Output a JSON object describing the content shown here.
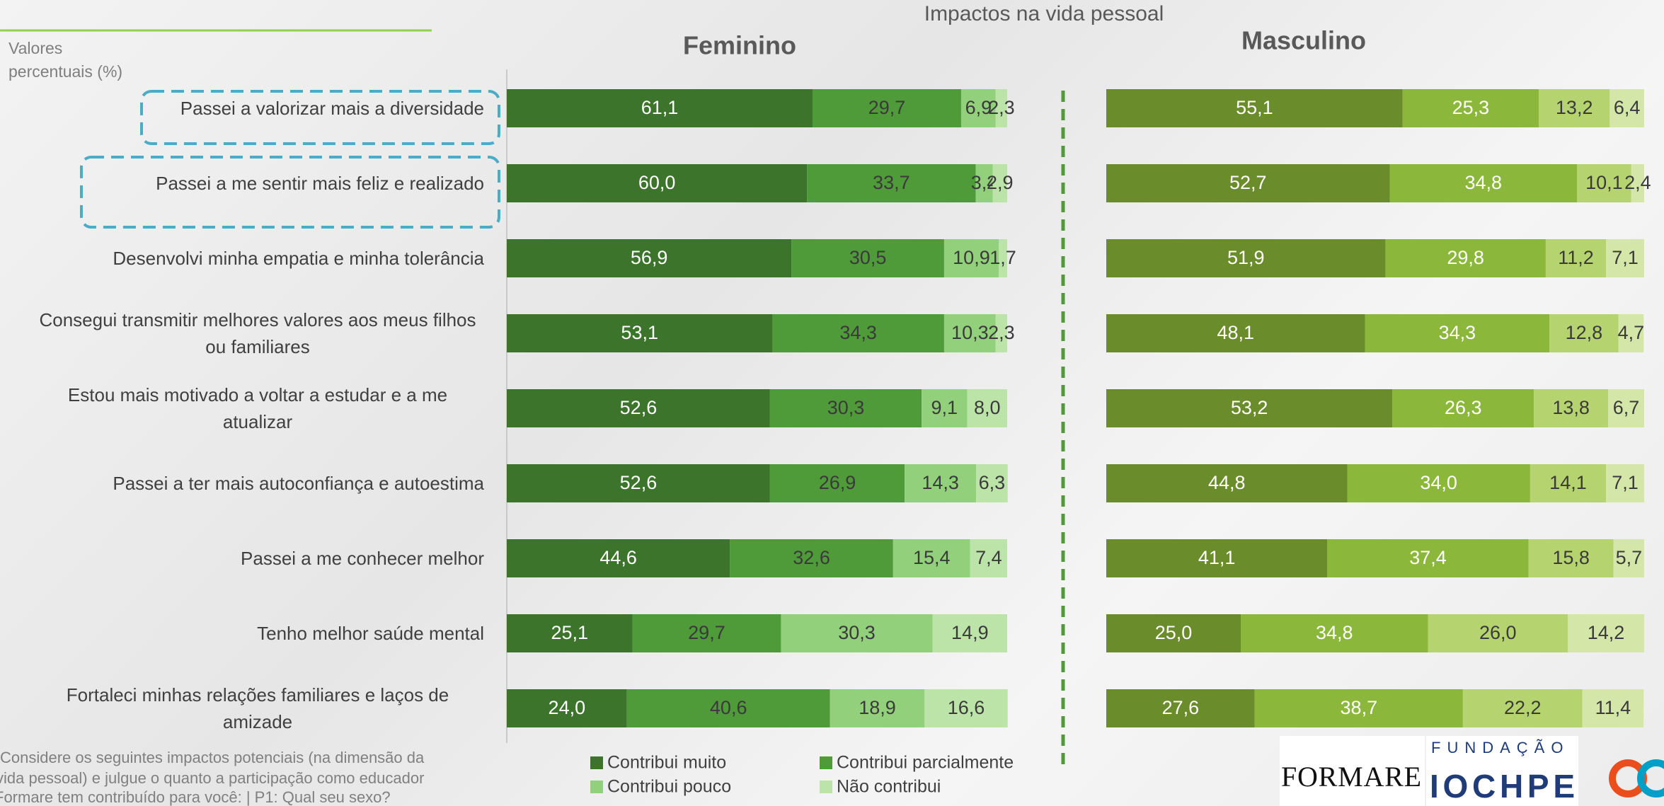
{
  "title": "Impactos na vida pessoal",
  "unit_note": [
    "Valores",
    "percentuais (%)"
  ],
  "footnote": [
    "Considere os seguintes impactos potenciais (na dimensão da",
    "vida pessoal) e julgue o quanto a participação como educador",
    "Formare tem contribuído para você: | P1: Qual seu sexo?"
  ],
  "logos": {
    "formare": "FORMARE",
    "fundacao": "FUNDAÇÃO",
    "iochpe": "IOCHPE"
  },
  "chart_data": [
    {
      "type": "bar",
      "orientation": "horizontal",
      "stacked": true,
      "title": "Feminino",
      "categories": [
        "Passei a valorizar mais a diversidade",
        "Passei a me sentir mais feliz e realizado",
        "Desenvolvi minha empatia e minha tolerância",
        "Consegui transmitir melhores valores aos meus filhos ou familiares",
        "Estou mais motivado a voltar a estudar e a me atualizar",
        "Passei a ter mais autoconfiança e autoestima",
        "Passei a me conhecer melhor",
        "Tenho melhor saúde mental",
        "Fortaleci minhas relações familiares e laços de amizade"
      ],
      "series": [
        {
          "name": "Contribui muito",
          "color": "#3d742c",
          "values": [
            61.1,
            60.0,
            56.9,
            53.1,
            52.6,
            52.6,
            44.6,
            25.1,
            24.0
          ],
          "value_labels": [
            "61,1",
            "60,0",
            "56,9",
            "53,1",
            "52,6",
            "52,6",
            "44,6",
            "25,1",
            "24,0"
          ]
        },
        {
          "name": "Contribui parcialmente",
          "color": "#4f9a39",
          "values": [
            29.7,
            33.7,
            30.5,
            34.3,
            30.3,
            26.9,
            32.6,
            29.7,
            40.6
          ],
          "value_labels": [
            "29,7",
            "33,7",
            "30,5",
            "34,3",
            "30,3",
            "26,9",
            "32,6",
            "29,7",
            "40,6"
          ]
        },
        {
          "name": "Contribui pouco",
          "color": "#92d07b",
          "values": [
            6.9,
            3.4,
            10.9,
            10.3,
            9.1,
            14.3,
            15.4,
            30.3,
            18.9
          ],
          "value_labels": [
            "6,9",
            "3,4",
            "10,9",
            "10,3",
            "9,1",
            "14,3",
            "15,4",
            "30,3",
            "18,9"
          ]
        },
        {
          "name": "Não contribui",
          "color": "#bce4a8",
          "values": [
            2.3,
            2.9,
            1.7,
            2.3,
            8.0,
            6.3,
            7.4,
            14.9,
            16.6
          ],
          "value_labels": [
            "2,3",
            "2,9",
            "1,7",
            "2,3",
            "8,0",
            "6,3",
            "7,4",
            "14,9",
            "16,6"
          ]
        }
      ],
      "legend": "bottom"
    },
    {
      "type": "bar",
      "orientation": "horizontal",
      "stacked": true,
      "title": "Masculino",
      "series": [
        {
          "color": "#6b8c2a",
          "values": [
            55.1,
            52.7,
            51.9,
            48.1,
            53.2,
            44.8,
            41.1,
            25.0,
            27.6
          ],
          "value_labels": [
            "55,1",
            "52,7",
            "51,9",
            "48,1",
            "53,2",
            "44,8",
            "41,1",
            "25,0",
            "27,6"
          ]
        },
        {
          "color": "#8bb73b",
          "values": [
            25.3,
            34.8,
            29.8,
            34.3,
            26.3,
            34.0,
            37.4,
            34.8,
            38.7
          ],
          "value_labels": [
            "25,3",
            "34,8",
            "29,8",
            "34,3",
            "26,3",
            "34,0",
            "37,4",
            "34,8",
            "38,7"
          ]
        },
        {
          "color": "#b5d36e",
          "values": [
            13.2,
            10.1,
            11.2,
            12.8,
            13.8,
            14.1,
            15.8,
            26.0,
            22.2
          ],
          "value_labels": [
            "13,2",
            "10,1",
            "11,2",
            "12,8",
            "13,8",
            "14,1",
            "15,8",
            "26,0",
            "22,2"
          ]
        },
        {
          "color": "#d4e6a8",
          "values": [
            6.4,
            2.4,
            7.1,
            4.7,
            6.7,
            7.1,
            5.7,
            14.2,
            11.4
          ],
          "value_labels": [
            "6,4",
            "2,4",
            "7,1",
            "4,7",
            "6,7",
            "7,1",
            "5,7",
            "14,2",
            "11,4"
          ]
        }
      ]
    }
  ]
}
